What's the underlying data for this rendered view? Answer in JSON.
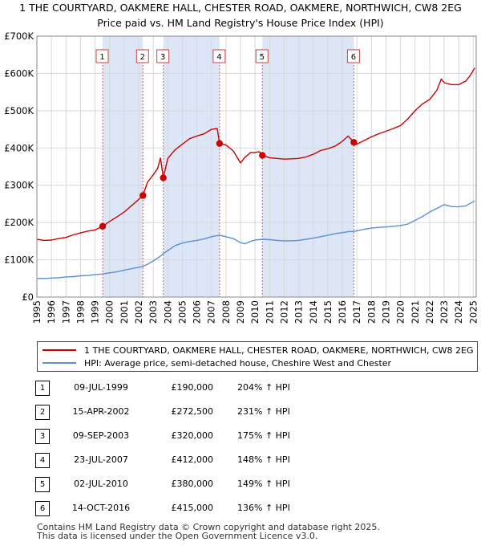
{
  "header": {
    "title": "1 THE COURTYARD, OAKMERE HALL, CHESTER ROAD, OAKMERE, NORTHWICH, CW8 2EG",
    "subtitle": "Price paid vs. HM Land Registry's House Price Index (HPI)"
  },
  "colors": {
    "red": "#cc0000",
    "blue": "#5b8fd4",
    "shade": "#dce6f6",
    "grid": "#d8d8d8"
  },
  "chart_data": {
    "type": "line",
    "title": "1 THE COURTYARD, OAKMERE HALL, CHESTER ROAD, OAKMERE, NORTHWICH, CW8 2EG",
    "subtitle": "Price paid vs. HM Land Registry's House Price Index (HPI)",
    "xlabel": "",
    "ylabel": "",
    "xlim": [
      1995,
      2025.2
    ],
    "ylim": [
      0,
      700000
    ],
    "x_ticks": [
      1995,
      1996,
      1997,
      1998,
      1999,
      2000,
      2001,
      2002,
      2003,
      2004,
      2005,
      2006,
      2007,
      2008,
      2009,
      2010,
      2011,
      2012,
      2013,
      2014,
      2015,
      2016,
      2017,
      2018,
      2019,
      2020,
      2021,
      2022,
      2023,
      2024,
      2025
    ],
    "y_ticks": [
      {
        "value": 0,
        "label": "£0"
      },
      {
        "value": 100000,
        "label": "£100K"
      },
      {
        "value": 200000,
        "label": "£200K"
      },
      {
        "value": 300000,
        "label": "£300K"
      },
      {
        "value": 400000,
        "label": "£400K"
      },
      {
        "value": 500000,
        "label": "£500K"
      },
      {
        "value": 600000,
        "label": "£600K"
      },
      {
        "value": 700000,
        "label": "£700K"
      }
    ],
    "grid": true,
    "shaded_periods": [
      [
        1999.52,
        2002.29
      ],
      [
        2003.69,
        2007.56
      ],
      [
        2010.5,
        2016.79
      ]
    ],
    "series": [
      {
        "name": "1 THE COURTYARD, OAKMERE HALL, CHESTER ROAD, OAKMERE, NORTHWICH, CW8 2EG (semi-detached house)",
        "color": "#cc0000",
        "x": [
          1995,
          1995.5,
          1996,
          1996.5,
          1997,
          1997.5,
          1998,
          1998.5,
          1999,
          1999.52,
          2000,
          2000.5,
          2001,
          2001.5,
          2002,
          2002.29,
          2002.6,
          2003,
          2003.3,
          2003.5,
          2003.69,
          2004,
          2004.5,
          2005,
          2005.5,
          2006,
          2006.5,
          2007,
          2007.4,
          2007.56,
          2008,
          2008.5,
          2009,
          2009.3,
          2009.7,
          2010,
          2010.3,
          2010.5,
          2011,
          2011.5,
          2012,
          2012.5,
          2013,
          2013.5,
          2014,
          2014.5,
          2015,
          2015.5,
          2016,
          2016.4,
          2016.79,
          2017,
          2017.5,
          2018,
          2018.5,
          2019,
          2019.5,
          2020,
          2020.5,
          2021,
          2021.5,
          2022,
          2022.5,
          2022.8,
          2023,
          2023.5,
          2024,
          2024.5,
          2024.8,
          2025.1
        ],
        "y": [
          155000,
          152000,
          153000,
          157000,
          160000,
          167000,
          172000,
          177000,
          180000,
          190000,
          203000,
          215000,
          228000,
          245000,
          262000,
          272500,
          308000,
          328000,
          345000,
          373000,
          320000,
          372000,
          395000,
          410000,
          425000,
          432000,
          438000,
          450000,
          452000,
          412000,
          408000,
          392000,
          360000,
          375000,
          388000,
          388000,
          390000,
          380000,
          374000,
          372000,
          370000,
          371000,
          372000,
          376000,
          383000,
          393000,
          398000,
          405000,
          418000,
          432000,
          415000,
          410000,
          420000,
          430000,
          438000,
          445000,
          452000,
          460000,
          478000,
          500000,
          518000,
          530000,
          555000,
          585000,
          575000,
          570000,
          570000,
          580000,
          595000,
          615000
        ]
      },
      {
        "name": "HPI: Average price, semi-detached house, Cheshire West and Chester",
        "color": "#5b8fd4",
        "x": [
          1995,
          1995.5,
          1996,
          1996.5,
          1997,
          1997.5,
          1998,
          1998.5,
          1999,
          1999.52,
          2000,
          2000.5,
          2001,
          2001.5,
          2002,
          2002.29,
          2002.6,
          2003,
          2003.5,
          2003.69,
          2004,
          2004.5,
          2005,
          2005.5,
          2006,
          2006.5,
          2007,
          2007.56,
          2008,
          2008.5,
          2009,
          2009.3,
          2009.7,
          2010,
          2010.5,
          2011,
          2011.5,
          2012,
          2012.5,
          2013,
          2013.5,
          2014,
          2014.5,
          2015,
          2015.5,
          2016,
          2016.5,
          2016.79,
          2017,
          2017.5,
          2018,
          2018.5,
          2019,
          2019.5,
          2020,
          2020.5,
          2021,
          2021.5,
          2022,
          2022.5,
          2023,
          2023.5,
          2024,
          2024.5,
          2025.1
        ],
        "y": [
          50000,
          50000,
          51000,
          52000,
          54000,
          55000,
          57000,
          58000,
          60000,
          62000,
          65000,
          68000,
          72000,
          76000,
          80000,
          82000,
          88000,
          97000,
          110000,
          116000,
          125000,
          138000,
          145000,
          149000,
          152000,
          156000,
          162000,
          166000,
          162000,
          157000,
          146000,
          143000,
          150000,
          153000,
          155000,
          154000,
          152000,
          151000,
          151000,
          152000,
          155000,
          158000,
          162000,
          166000,
          170000,
          173000,
          176000,
          176000,
          178000,
          182000,
          185000,
          187000,
          188000,
          190000,
          192000,
          196000,
          206000,
          216000,
          228000,
          238000,
          248000,
          243000,
          242000,
          245000,
          258000
        ]
      }
    ],
    "sales": [
      {
        "label": "1",
        "x": 1999.52,
        "y": 190000
      },
      {
        "label": "2",
        "x": 2002.29,
        "y": 272500
      },
      {
        "label": "3",
        "x": 2003.69,
        "y": 320000
      },
      {
        "label": "4",
        "x": 2007.56,
        "y": 412000
      },
      {
        "label": "5",
        "x": 2010.5,
        "y": 380000
      },
      {
        "label": "6",
        "x": 2016.79,
        "y": 415000
      }
    ]
  },
  "legend": {
    "items": [
      {
        "label": "1 THE COURTYARD, OAKMERE HALL, CHESTER ROAD, OAKMERE, NORTHWICH, CW8 2EG (semi-detached house)"
      },
      {
        "label": "HPI: Average price, semi-detached house, Cheshire West and Chester"
      }
    ]
  },
  "sales_table": [
    {
      "num": "1",
      "date": "09-JUL-1999",
      "price": "£190,000",
      "hpi": "204% ↑ HPI"
    },
    {
      "num": "2",
      "date": "15-APR-2002",
      "price": "£272,500",
      "hpi": "231% ↑ HPI"
    },
    {
      "num": "3",
      "date": "09-SEP-2003",
      "price": "£320,000",
      "hpi": "175% ↑ HPI"
    },
    {
      "num": "4",
      "date": "23-JUL-2007",
      "price": "£412,000",
      "hpi": "148% ↑ HPI"
    },
    {
      "num": "5",
      "date": "02-JUL-2010",
      "price": "£380,000",
      "hpi": "149% ↑ HPI"
    },
    {
      "num": "6",
      "date": "14-OCT-2016",
      "price": "£415,000",
      "hpi": "136% ↑ HPI"
    }
  ],
  "footer": {
    "line1": "Contains HM Land Registry data © Crown copyright and database right 2025.",
    "line2": "This data is licensed under the Open Government Licence v3.0."
  }
}
